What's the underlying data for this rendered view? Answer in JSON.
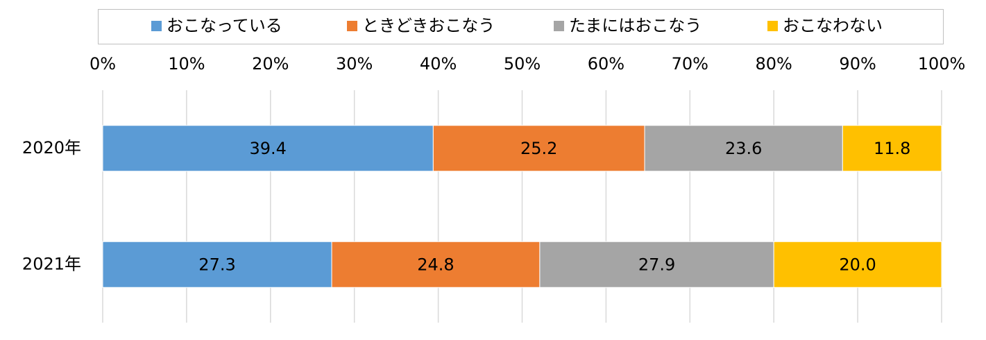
{
  "chart_data": {
    "type": "bar",
    "orientation": "horizontal",
    "stacked": "percent",
    "categories": [
      "2020年",
      "2021年"
    ],
    "series": [
      {
        "name": "おこなっている",
        "values": [
          39.4,
          27.3
        ],
        "color": "#5B9BD5"
      },
      {
        "name": "ときどきおこなう",
        "values": [
          25.2,
          24.8
        ],
        "color": "#ED7D31"
      },
      {
        "name": "たまにはおこなう",
        "values": [
          23.6,
          27.9
        ],
        "color": "#A5A5A5"
      },
      {
        "name": "おこなわない",
        "values": [
          11.8,
          20.0
        ],
        "color": "#FFC000"
      }
    ],
    "x_ticks": [
      "0%",
      "10%",
      "20%",
      "30%",
      "40%",
      "50%",
      "60%",
      "70%",
      "80%",
      "90%",
      "100%"
    ],
    "xlim": [
      0,
      100
    ],
    "grid": true,
    "legend_position": "top"
  }
}
